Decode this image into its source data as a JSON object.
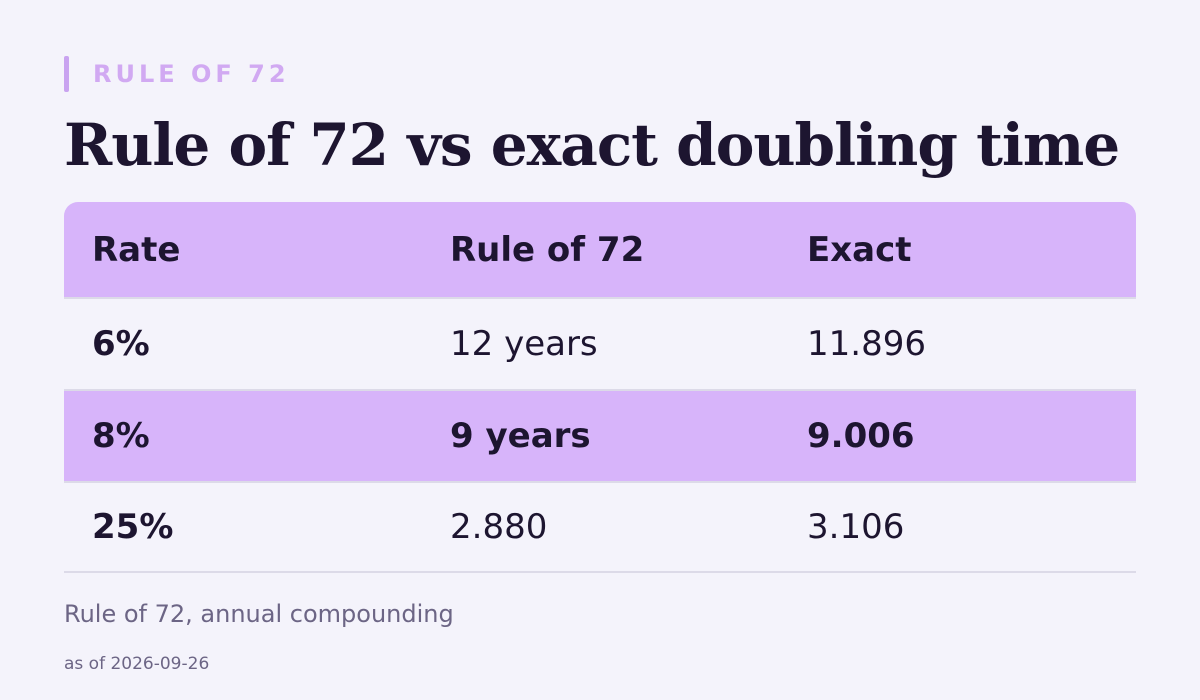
{
  "eyebrow": "RULE OF 72",
  "title": "Rule of 72 vs exact doubling time",
  "table": {
    "headers": [
      "Rate",
      "Rule of 72",
      "Exact"
    ],
    "rows": [
      {
        "rate": "6%",
        "rule72": "12 years",
        "exact": "11.896",
        "highlighted": false
      },
      {
        "rate": "8%",
        "rule72": "9 years",
        "exact": "9.006",
        "highlighted": true
      },
      {
        "rate": "25%",
        "rule72": "2.880",
        "exact": "3.106",
        "highlighted": false
      }
    ]
  },
  "caption": "Rule of 72, annual compounding",
  "as_of": "as of 2026-09-26",
  "colors": {
    "background": "#f4f3fb",
    "accent": "#d7b4fa",
    "eyebrow": "#d1a9f2",
    "text": "#1d1530",
    "muted": "#6c6585"
  }
}
